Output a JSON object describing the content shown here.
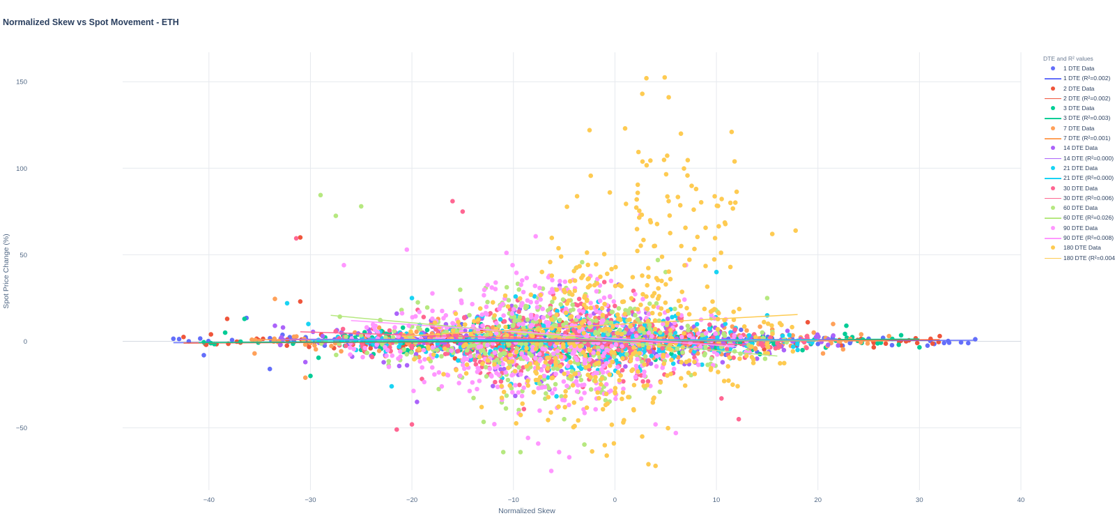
{
  "chart_data": {
    "type": "scatter",
    "title": "Normalized Skew vs Spot Movement - ETH",
    "xlabel": "Normalized Skew",
    "ylabel": "Spot Price Change (%)",
    "xlim": [
      -48.5,
      40
    ],
    "ylim": [
      -86,
      167
    ],
    "x_ticks": [
      -40,
      -30,
      -20,
      -10,
      0,
      10,
      20,
      30,
      40
    ],
    "x_tick_labels": [
      "−40",
      "−30",
      "−20",
      "−10",
      "0",
      "10",
      "20",
      "30",
      "40"
    ],
    "y_ticks": [
      150,
      100,
      50,
      0,
      -50
    ],
    "y_tick_labels": [
      "150",
      "100",
      "50",
      "0",
      "−50"
    ],
    "grid": true,
    "legend_title": "DTE and R² values",
    "legend_position": "right",
    "series": [
      {
        "name": "1 DTE Data",
        "dte": 1,
        "color": "#636efa",
        "x_range": [
          -43.5,
          35.5
        ],
        "y_spread": 4,
        "r2": 0.002,
        "points": [
          [
            -43.5,
            1.5
          ],
          [
            -40.5,
            -8
          ],
          [
            -34,
            -16
          ],
          [
            -36.3,
            13.5
          ],
          [
            -13,
            2
          ],
          [
            -8,
            1
          ],
          [
            0,
            -1
          ],
          [
            10,
            1
          ],
          [
            20,
            -1.5
          ],
          [
            25,
            1.5
          ],
          [
            30.8,
            -2.5
          ],
          [
            35.5,
            1.2
          ]
        ]
      },
      {
        "name": "1 DTE (R²=0.002)",
        "dte": 1,
        "color": "#636efa",
        "line": [
          [
            -43.5,
            -0.8
          ],
          [
            35.5,
            0.6
          ]
        ]
      },
      {
        "name": "2 DTE Data",
        "dte": 2,
        "color": "#ef553b",
        "x_range": [
          -42.5,
          32
        ],
        "y_spread": 5,
        "r2": 0.002,
        "points": [
          [
            -42.5,
            2.5
          ],
          [
            -39.8,
            4
          ],
          [
            -38.2,
            13
          ],
          [
            -31,
            60
          ],
          [
            -31,
            23
          ],
          [
            -10,
            -2
          ],
          [
            5,
            3
          ],
          [
            19,
            11
          ],
          [
            25.5,
            -3.5
          ],
          [
            32,
            3
          ]
        ]
      },
      {
        "name": "2 DTE (R²=0.002)",
        "dte": 2,
        "color": "#ef553b",
        "line": [
          [
            -42.5,
            -1.0
          ],
          [
            32,
            0.9
          ]
        ]
      },
      {
        "name": "3 DTE Data",
        "dte": 3,
        "color": "#00cc96",
        "x_range": [
          -41,
          30
        ],
        "y_spread": 6,
        "r2": 0.003,
        "points": [
          [
            -40.5,
            -0.5
          ],
          [
            -38.4,
            5
          ],
          [
            -36.5,
            13
          ],
          [
            -30,
            -20
          ],
          [
            -29.2,
            -9.5
          ],
          [
            22.8,
            9
          ],
          [
            30,
            -3.5
          ],
          [
            28.2,
            3.5
          ]
        ]
      },
      {
        "name": "3 DTE (R²=0.003)",
        "dte": 3,
        "color": "#00cc96",
        "line": [
          [
            -41,
            -0.7
          ],
          [
            30,
            1.3
          ]
        ]
      },
      {
        "name": "7 DTE Data",
        "dte": 7,
        "color": "#ffa15a",
        "x_range": [
          -36,
          27
        ],
        "y_spread": 8,
        "r2": 0.001,
        "points": [
          [
            -33.5,
            24.5
          ],
          [
            -35.5,
            -7
          ],
          [
            -30,
            -1
          ],
          [
            -30.5,
            -21
          ],
          [
            20.5,
            -7
          ],
          [
            21.5,
            10
          ],
          [
            27,
            3
          ]
        ]
      },
      {
        "name": "7 DTE (R²=0.001)",
        "dte": 7,
        "color": "#ffa15a",
        "line": [
          [
            -36,
            1.0
          ],
          [
            27,
            0.2
          ]
        ]
      },
      {
        "name": "14 DTE Data",
        "dte": 14,
        "color": "#ab63fa",
        "x_range": [
          -33,
          22
        ],
        "y_spread": 12,
        "r2": 0.0,
        "points": [
          [
            -33.5,
            9
          ],
          [
            -32.7,
            8
          ],
          [
            -30.5,
            -12
          ],
          [
            -19.5,
            -35
          ],
          [
            -21.5,
            16
          ],
          [
            14,
            -10
          ],
          [
            17,
            6
          ],
          [
            21,
            -2
          ]
        ]
      },
      {
        "name": "14 DTE (R²=0.000)",
        "dte": 14,
        "color": "#ab63fa",
        "line": [
          [
            -33,
            1.2
          ],
          [
            22,
            1.0
          ]
        ]
      },
      {
        "name": "21 DTE Data",
        "dte": 21,
        "color": "#19d3f3",
        "x_range": [
          -30,
          20
        ],
        "y_spread": 12,
        "r2": 0.0,
        "points": [
          [
            -30.2,
            10
          ],
          [
            -32.3,
            22
          ],
          [
            -25.5,
            -5
          ],
          [
            -22,
            -26
          ],
          [
            -20,
            25
          ],
          [
            10,
            40
          ],
          [
            15,
            15
          ],
          [
            18,
            -5
          ]
        ]
      },
      {
        "name": "21 DTE (R²=0.000)",
        "dte": 21,
        "color": "#19d3f3",
        "line": [
          [
            -30,
            0.6
          ],
          [
            20,
            0.8
          ]
        ]
      },
      {
        "name": "30 DTE Data",
        "dte": 30,
        "color": "#ff6692",
        "x_range": [
          -29,
          19
        ],
        "y_spread": 14,
        "r2": 0.006,
        "points": [
          [
            -31.4,
            59.5
          ],
          [
            -16,
            81
          ],
          [
            -15,
            75
          ],
          [
            -21.5,
            -51
          ],
          [
            -20,
            -48
          ],
          [
            10.5,
            -33
          ],
          [
            12.2,
            -45
          ]
        ]
      },
      {
        "name": "30 DTE (R²=0.006)",
        "dte": 30,
        "color": "#ff6692",
        "line": [
          [
            -31,
            5.5
          ],
          [
            13,
            -2.0
          ]
        ]
      },
      {
        "name": "60 DTE Data",
        "dte": 60,
        "color": "#b6e880",
        "x_range": [
          -29,
          17
        ],
        "y_spread": 20,
        "r2": 0.026,
        "points": [
          [
            -29,
            84.5
          ],
          [
            -27.5,
            72.5
          ],
          [
            -25,
            78
          ],
          [
            -9.3,
            -64
          ],
          [
            -11,
            -64
          ],
          [
            -5,
            -45
          ],
          [
            5,
            40
          ],
          [
            15,
            25
          ]
        ]
      },
      {
        "name": "60 DTE (R²=0.026)",
        "dte": 60,
        "color": "#b6e880",
        "line": [
          [
            -28,
            15.0
          ],
          [
            16,
            -8.5
          ]
        ]
      },
      {
        "name": "90 DTE Data",
        "dte": 90,
        "color": "#ff97ff",
        "x_range": [
          -27,
          14
        ],
        "y_spread": 22,
        "r2": 0.008,
        "points": [
          [
            -26.7,
            44
          ],
          [
            -20.5,
            53
          ],
          [
            -5.5,
            -64
          ],
          [
            -4.5,
            -67
          ],
          [
            6,
            -53
          ],
          [
            4,
            -48
          ],
          [
            7,
            44
          ],
          [
            2.5,
            73
          ]
        ]
      },
      {
        "name": "90 DTE (R²=0.008)",
        "dte": 90,
        "color": "#ff97ff",
        "line": [
          [
            -26,
            12.0
          ],
          [
            12,
            -3.0
          ]
        ]
      },
      {
        "name": "180 DTE Data",
        "dte": 180,
        "color": "#fecb52",
        "x_range": [
          -21,
          18
        ],
        "y_spread": 30,
        "r2": 0.004,
        "points": [
          [
            3.1,
            152
          ],
          [
            4.9,
            152.5
          ],
          [
            2.7,
            143
          ],
          [
            5.3,
            141
          ],
          [
            1,
            123
          ],
          [
            -2.5,
            122
          ],
          [
            11.5,
            121
          ],
          [
            6.5,
            120
          ],
          [
            -0.5,
            86
          ],
          [
            -5.3,
            49
          ],
          [
            -1,
            -60
          ],
          [
            -0.8,
            -66
          ],
          [
            3.3,
            -71
          ],
          [
            4,
            -72
          ],
          [
            17.8,
            64
          ],
          [
            15.5,
            62
          ],
          [
            8,
            88
          ]
        ]
      },
      {
        "name": "180 DTE (R²=0.004)",
        "dte": 180,
        "color": "#fecb52",
        "line": [
          [
            -21,
            3.0
          ],
          [
            18,
            15.5
          ]
        ]
      }
    ]
  }
}
